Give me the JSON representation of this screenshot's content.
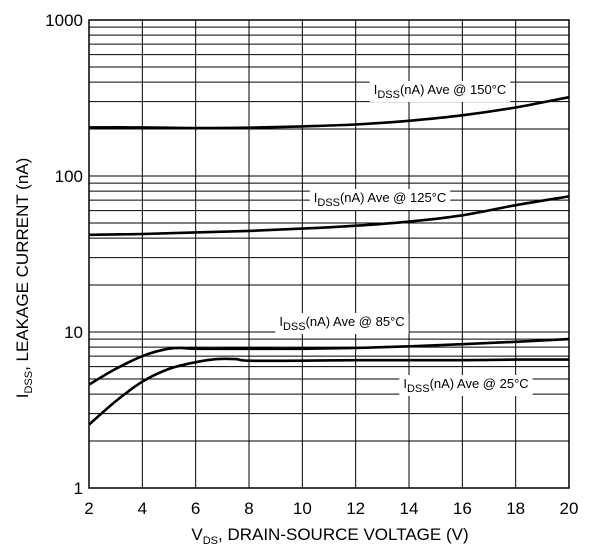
{
  "chart_data": {
    "type": "line",
    "xlabel": "V",
    "xlabel_sub": "DS",
    "xlabel_rest": ", DRAIN-SOURCE VOLTAGE (V)",
    "ylabel": "I",
    "ylabel_sub": "DSS",
    "ylabel_rest": ", LEAKAGE CURRENT (nA)",
    "xlim": [
      2,
      20
    ],
    "ylim": [
      1,
      1000
    ],
    "yscale": "log",
    "grid": true,
    "x_ticks": [
      2,
      4,
      6,
      8,
      10,
      12,
      14,
      16,
      18,
      20
    ],
    "y_ticks": [
      1,
      10,
      100,
      1000
    ],
    "series": [
      {
        "name": "IDSS(nA) Ave @ 150°C",
        "label_main": "I",
        "label_sub": "DSS",
        "label_rest": "(nA) Ave @ 150°C",
        "x": [
          2,
          4,
          6,
          8,
          10,
          12,
          14,
          16,
          18,
          20
        ],
        "y": [
          205,
          205,
          203,
          204,
          208,
          214,
          226,
          245,
          275,
          320
        ]
      },
      {
        "name": "IDSS(nA) Ave @ 125°C",
        "label_main": "I",
        "label_sub": "DSS",
        "label_rest": "(nA) Ave @ 125°C",
        "x": [
          2,
          4,
          6,
          8,
          10,
          12,
          14,
          16,
          18,
          20
        ],
        "y": [
          42,
          42.5,
          43.5,
          44.5,
          46,
          48,
          51,
          56,
          65,
          74
        ]
      },
      {
        "name": "IDSS(nA) Ave @ 85°C",
        "label_main": "I",
        "label_sub": "DSS",
        "label_rest": "(nA) Ave @ 85°C",
        "x": [
          2,
          3,
          4,
          4.8,
          5.4,
          6,
          8,
          10,
          12,
          14,
          16,
          18,
          20
        ],
        "y": [
          4.6,
          5.8,
          7.0,
          7.7,
          7.9,
          7.8,
          7.8,
          7.8,
          7.9,
          8.1,
          8.35,
          8.65,
          9.0
        ]
      },
      {
        "name": "IDSS(nA) Ave @ 25°C",
        "label_main": "I",
        "label_sub": "DSS",
        "label_rest": "(nA) Ave @ 25°C",
        "x": [
          2,
          3,
          4,
          5,
          6,
          6.8,
          7.5,
          8,
          10,
          12,
          14,
          16,
          18,
          20
        ],
        "y": [
          2.55,
          3.6,
          4.8,
          5.8,
          6.4,
          6.7,
          6.7,
          6.55,
          6.55,
          6.6,
          6.6,
          6.6,
          6.65,
          6.65
        ]
      }
    ]
  }
}
